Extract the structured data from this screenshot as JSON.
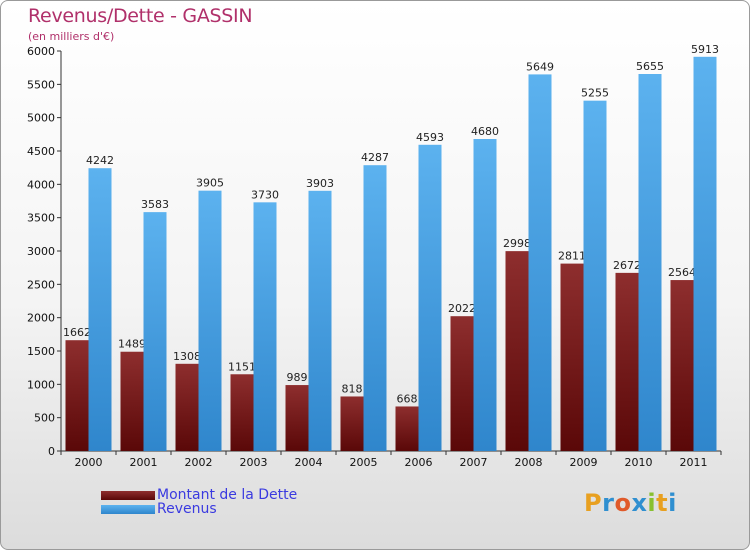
{
  "header": {
    "title": "Revenus/Dette - GASSIN",
    "subtitle": "(en milliers d'€)"
  },
  "legend": {
    "debt_label": "Montant de la Dette",
    "revenue_label": "Revenus"
  },
  "logo": {
    "text": "Proxiti",
    "colors": [
      "#e8a020",
      "#2f8fd0",
      "#e05a2a",
      "#2f8fd0",
      "#88c030",
      "#e8a020",
      "#2f8fd0"
    ]
  },
  "colors": {
    "debt": "#7a1c1c",
    "revenue": "#4aa3e3",
    "title": "#b0306a",
    "legend_text": "#3a3ae0"
  },
  "chart_data": {
    "type": "bar",
    "categories": [
      "2000",
      "2001",
      "2002",
      "2003",
      "2004",
      "2005",
      "2006",
      "2007",
      "2008",
      "2009",
      "2010",
      "2011"
    ],
    "series": [
      {
        "name": "Montant de la Dette",
        "values": [
          1662,
          1489,
          1308,
          1151,
          989,
          818,
          668,
          2022,
          2998,
          2811,
          2672,
          2564
        ]
      },
      {
        "name": "Revenus",
        "values": [
          4242,
          3583,
          3905,
          3730,
          3903,
          4287,
          4593,
          4680,
          5649,
          5255,
          5655,
          5913
        ]
      }
    ],
    "yticks": [
      0,
      500,
      1000,
      1500,
      2000,
      2500,
      3000,
      3500,
      4000,
      4500,
      5000,
      5500,
      6000
    ],
    "ylim": [
      0,
      6000
    ],
    "grid": false,
    "legend_position": "bottom-left"
  }
}
